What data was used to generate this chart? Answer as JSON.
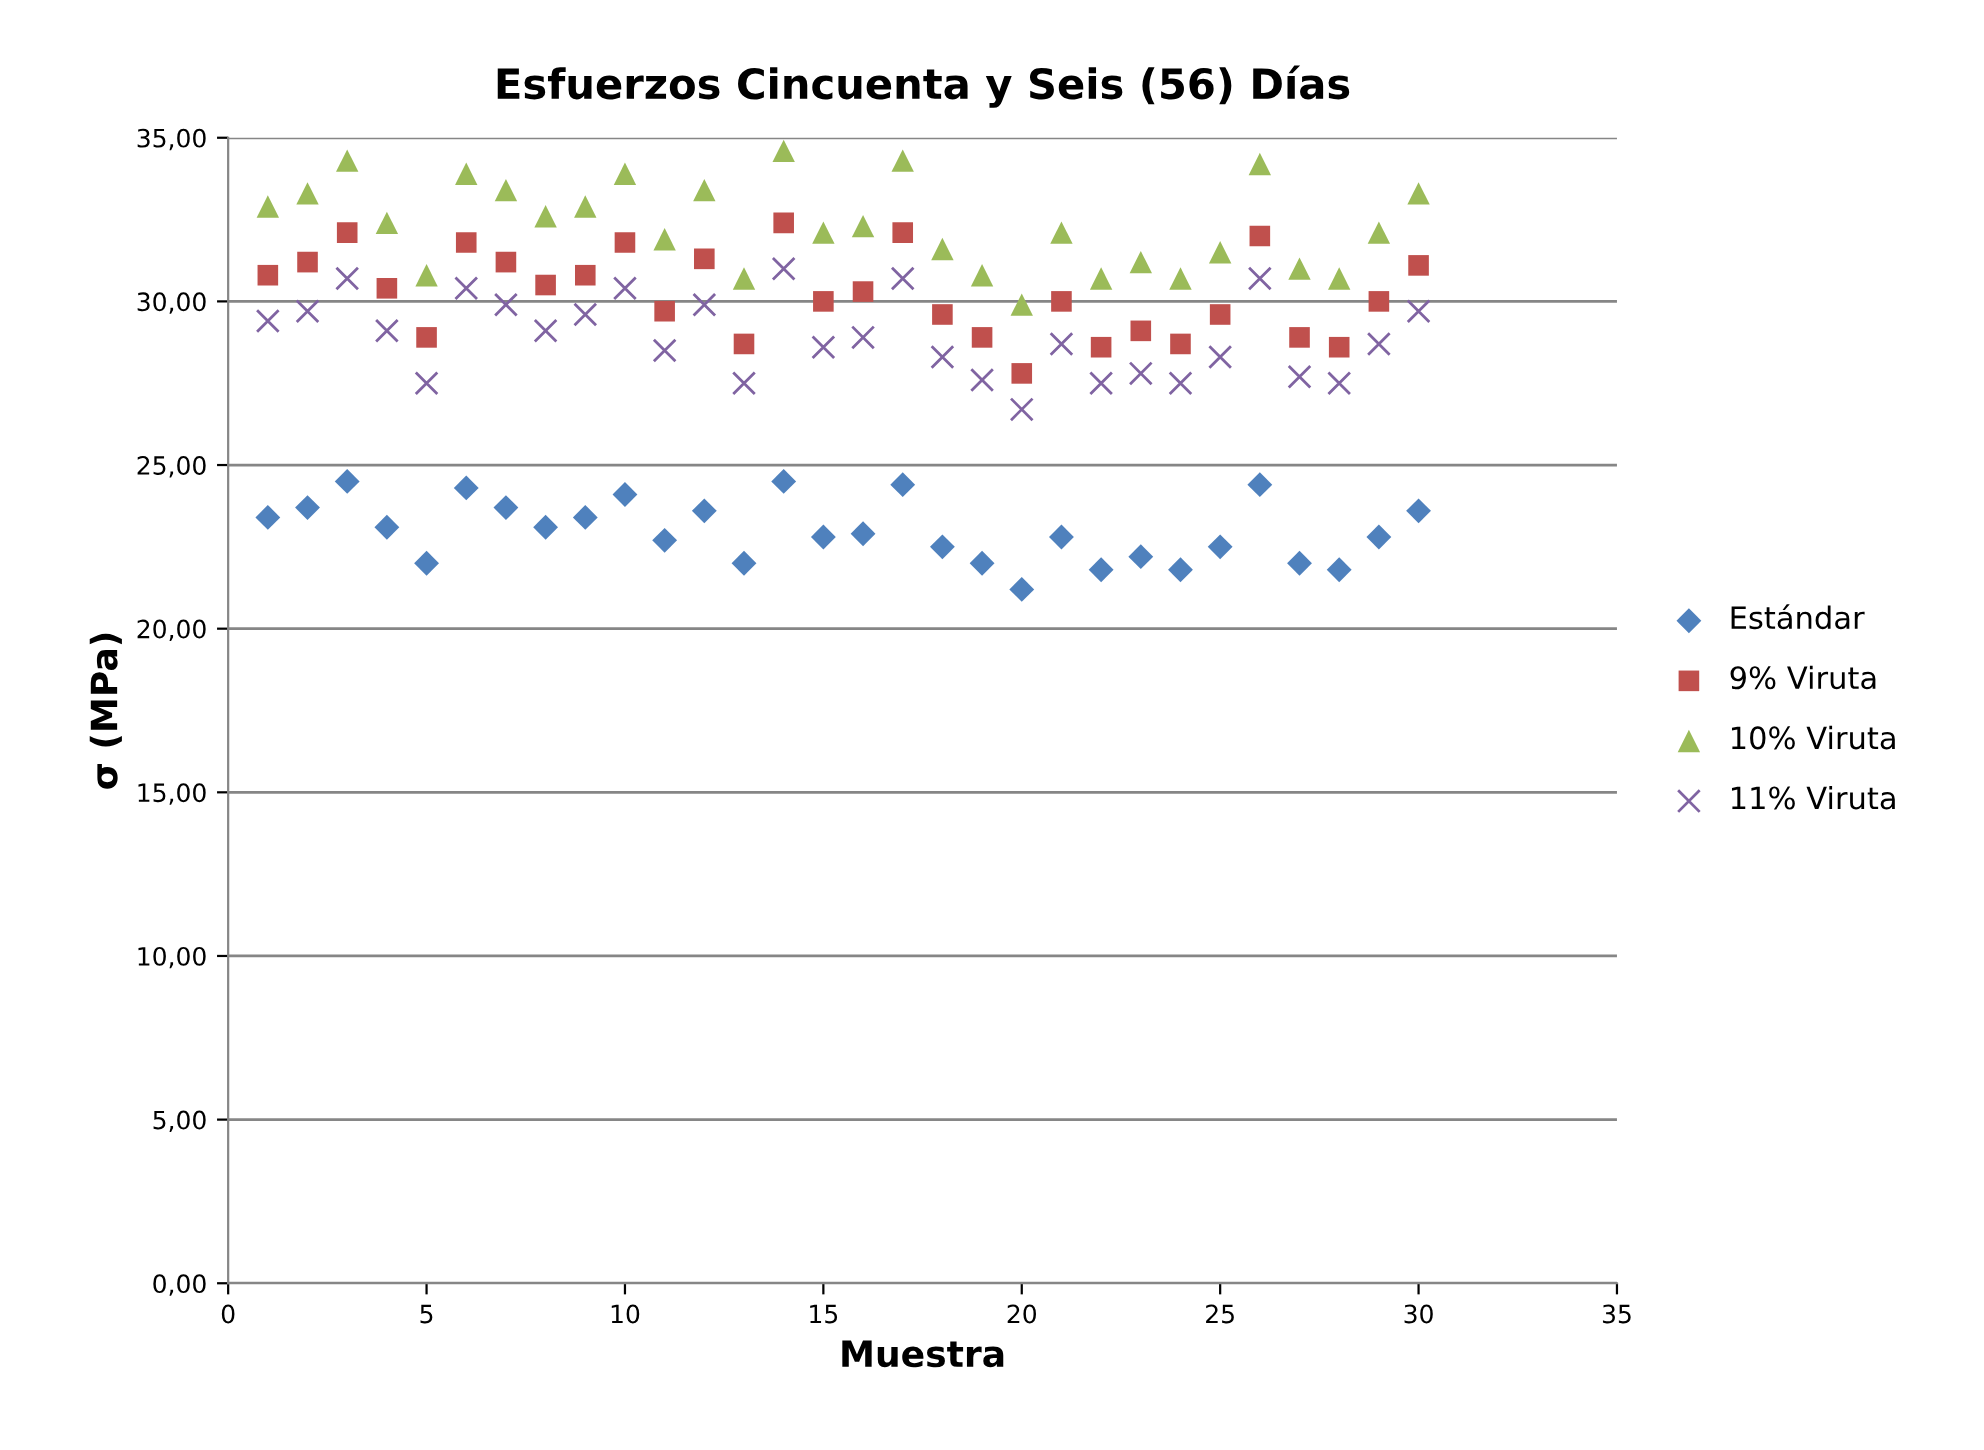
{
  "chart_data": {
    "type": "scatter",
    "title": "Esfuerzos Cincuenta y Seis (56) Días",
    "xlabel": "Muestra",
    "ylabel": "σ (MPa)",
    "x": [
      1,
      2,
      3,
      4,
      5,
      6,
      7,
      8,
      9,
      10,
      11,
      12,
      13,
      14,
      15,
      16,
      17,
      18,
      19,
      20,
      21,
      22,
      23,
      24,
      25,
      26,
      27,
      28,
      29,
      30
    ],
    "series": [
      {
        "name": "Estándar",
        "color": "#4f81bd",
        "marker": "diamond",
        "values": [
          23.4,
          23.7,
          24.5,
          23.1,
          22.0,
          24.3,
          23.7,
          23.1,
          23.4,
          24.1,
          22.7,
          23.6,
          22.0,
          24.5,
          22.8,
          22.9,
          24.4,
          22.5,
          22.0,
          21.2,
          22.8,
          21.8,
          22.2,
          21.8,
          22.5,
          24.4,
          22.0,
          21.8,
          22.8,
          23.6
        ]
      },
      {
        "name": "9% Viruta",
        "color": "#c0504d",
        "marker": "square",
        "values": [
          30.8,
          31.2,
          32.1,
          30.4,
          28.9,
          31.8,
          31.2,
          30.5,
          30.8,
          31.8,
          29.7,
          31.3,
          28.7,
          32.4,
          30.0,
          30.3,
          32.1,
          29.6,
          28.9,
          27.8,
          30.0,
          28.6,
          29.1,
          28.7,
          29.6,
          32.0,
          28.9,
          28.6,
          30.0,
          31.1
        ]
      },
      {
        "name": "10% Viruta",
        "color": "#9bbb59",
        "marker": "triangle",
        "values": [
          32.9,
          33.3,
          34.3,
          32.4,
          30.8,
          33.9,
          33.4,
          32.6,
          32.9,
          33.9,
          31.9,
          33.4,
          30.7,
          34.6,
          32.1,
          32.3,
          34.3,
          31.6,
          30.8,
          29.9,
          32.1,
          30.7,
          31.2,
          30.7,
          31.5,
          34.2,
          31.0,
          30.7,
          32.1,
          33.3
        ]
      },
      {
        "name": "11% Viruta",
        "color": "#8064a2",
        "marker": "cross",
        "values": [
          29.4,
          29.7,
          30.7,
          29.1,
          27.5,
          30.4,
          29.9,
          29.1,
          29.6,
          30.4,
          28.5,
          29.9,
          27.5,
          31.0,
          28.6,
          28.9,
          30.7,
          28.3,
          27.6,
          26.7,
          28.7,
          27.5,
          27.8,
          27.5,
          28.3,
          30.7,
          27.7,
          27.5,
          28.7,
          29.7
        ]
      }
    ],
    "xlim": [
      0,
      35
    ],
    "xticks": [
      0,
      5,
      10,
      15,
      20,
      25,
      30,
      35
    ],
    "ylim": [
      0,
      35
    ],
    "yticks": [
      {
        "value": 0,
        "label": "0,00"
      },
      {
        "value": 5,
        "label": "5,00"
      },
      {
        "value": 10,
        "label": "10,00"
      },
      {
        "value": 15,
        "label": "15,00"
      },
      {
        "value": 20,
        "label": "20,00"
      },
      {
        "value": 25,
        "label": "25,00"
      },
      {
        "value": 30,
        "label": "30,00"
      },
      {
        "value": 35,
        "label": "35,00"
      }
    ],
    "grid": "y",
    "legend": "right"
  }
}
